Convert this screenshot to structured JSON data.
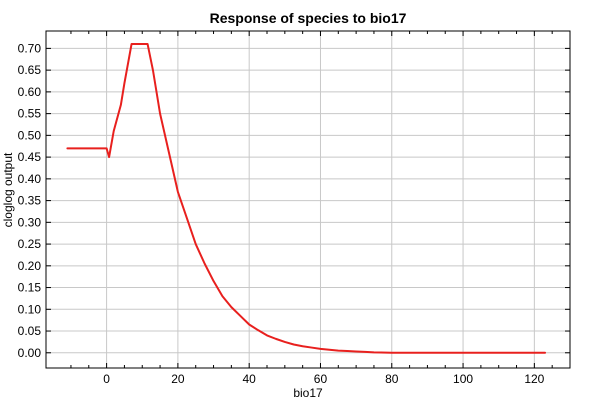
{
  "chart_data": {
    "type": "line",
    "title": "Response of species to bio17",
    "xlabel": "bio17",
    "ylabel": "cloglog output",
    "xlim": [
      -17,
      130
    ],
    "ylim": [
      -0.035,
      0.74
    ],
    "xticks": [
      0,
      20,
      40,
      60,
      80,
      100,
      120
    ],
    "yticks": [
      0.0,
      0.05,
      0.1,
      0.15,
      0.2,
      0.25,
      0.3,
      0.35,
      0.4,
      0.45,
      0.5,
      0.55,
      0.6,
      0.65,
      0.7
    ],
    "grid": true,
    "line_color": "#e8201e",
    "grid_color": "#c8c8c8",
    "series": [
      {
        "x": [
          -11,
          0,
          0.7,
          2,
          4,
          5,
          7,
          9,
          10,
          11.5,
          13,
          15,
          17.5,
          20,
          22.5,
          25,
          27.5,
          30,
          32.5,
          35,
          37.5,
          40,
          42.5,
          45,
          47.5,
          50,
          52.5,
          55,
          57.5,
          60,
          62.5,
          65,
          67.5,
          70,
          72.5,
          75,
          80,
          90,
          100,
          110,
          123
        ],
        "y": [
          0.47,
          0.47,
          0.45,
          0.51,
          0.57,
          0.62,
          0.71,
          0.71,
          0.71,
          0.71,
          0.65,
          0.55,
          0.46,
          0.37,
          0.31,
          0.25,
          0.205,
          0.165,
          0.13,
          0.105,
          0.085,
          0.065,
          0.052,
          0.04,
          0.032,
          0.025,
          0.019,
          0.015,
          0.012,
          0.009,
          0.007,
          0.005,
          0.004,
          0.003,
          0.002,
          0.001,
          0.0,
          0.0,
          0.0,
          0.0,
          0.0
        ]
      }
    ]
  }
}
